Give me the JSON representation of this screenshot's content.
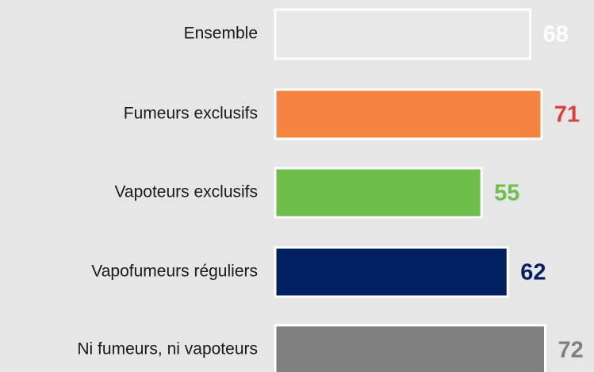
{
  "chart_data": {
    "type": "barh",
    "categories": [
      "Ensemble",
      "Fumeurs exclusifs",
      "Vapoteurs exclusifs",
      "Vapofumeurs réguliers",
      "Ni fumeurs, ni vapoteurs"
    ],
    "values": [
      68,
      71,
      55,
      62,
      72
    ],
    "colors": [
      "#e8e8e8",
      "#f4843f",
      "#6cbf4a",
      "#002060",
      "#808080"
    ],
    "label_colors": [
      "#ffffff",
      "#d9403b",
      "#6cbf4a",
      "#002060",
      "#808080"
    ],
    "xlim": [
      0,
      85
    ]
  }
}
